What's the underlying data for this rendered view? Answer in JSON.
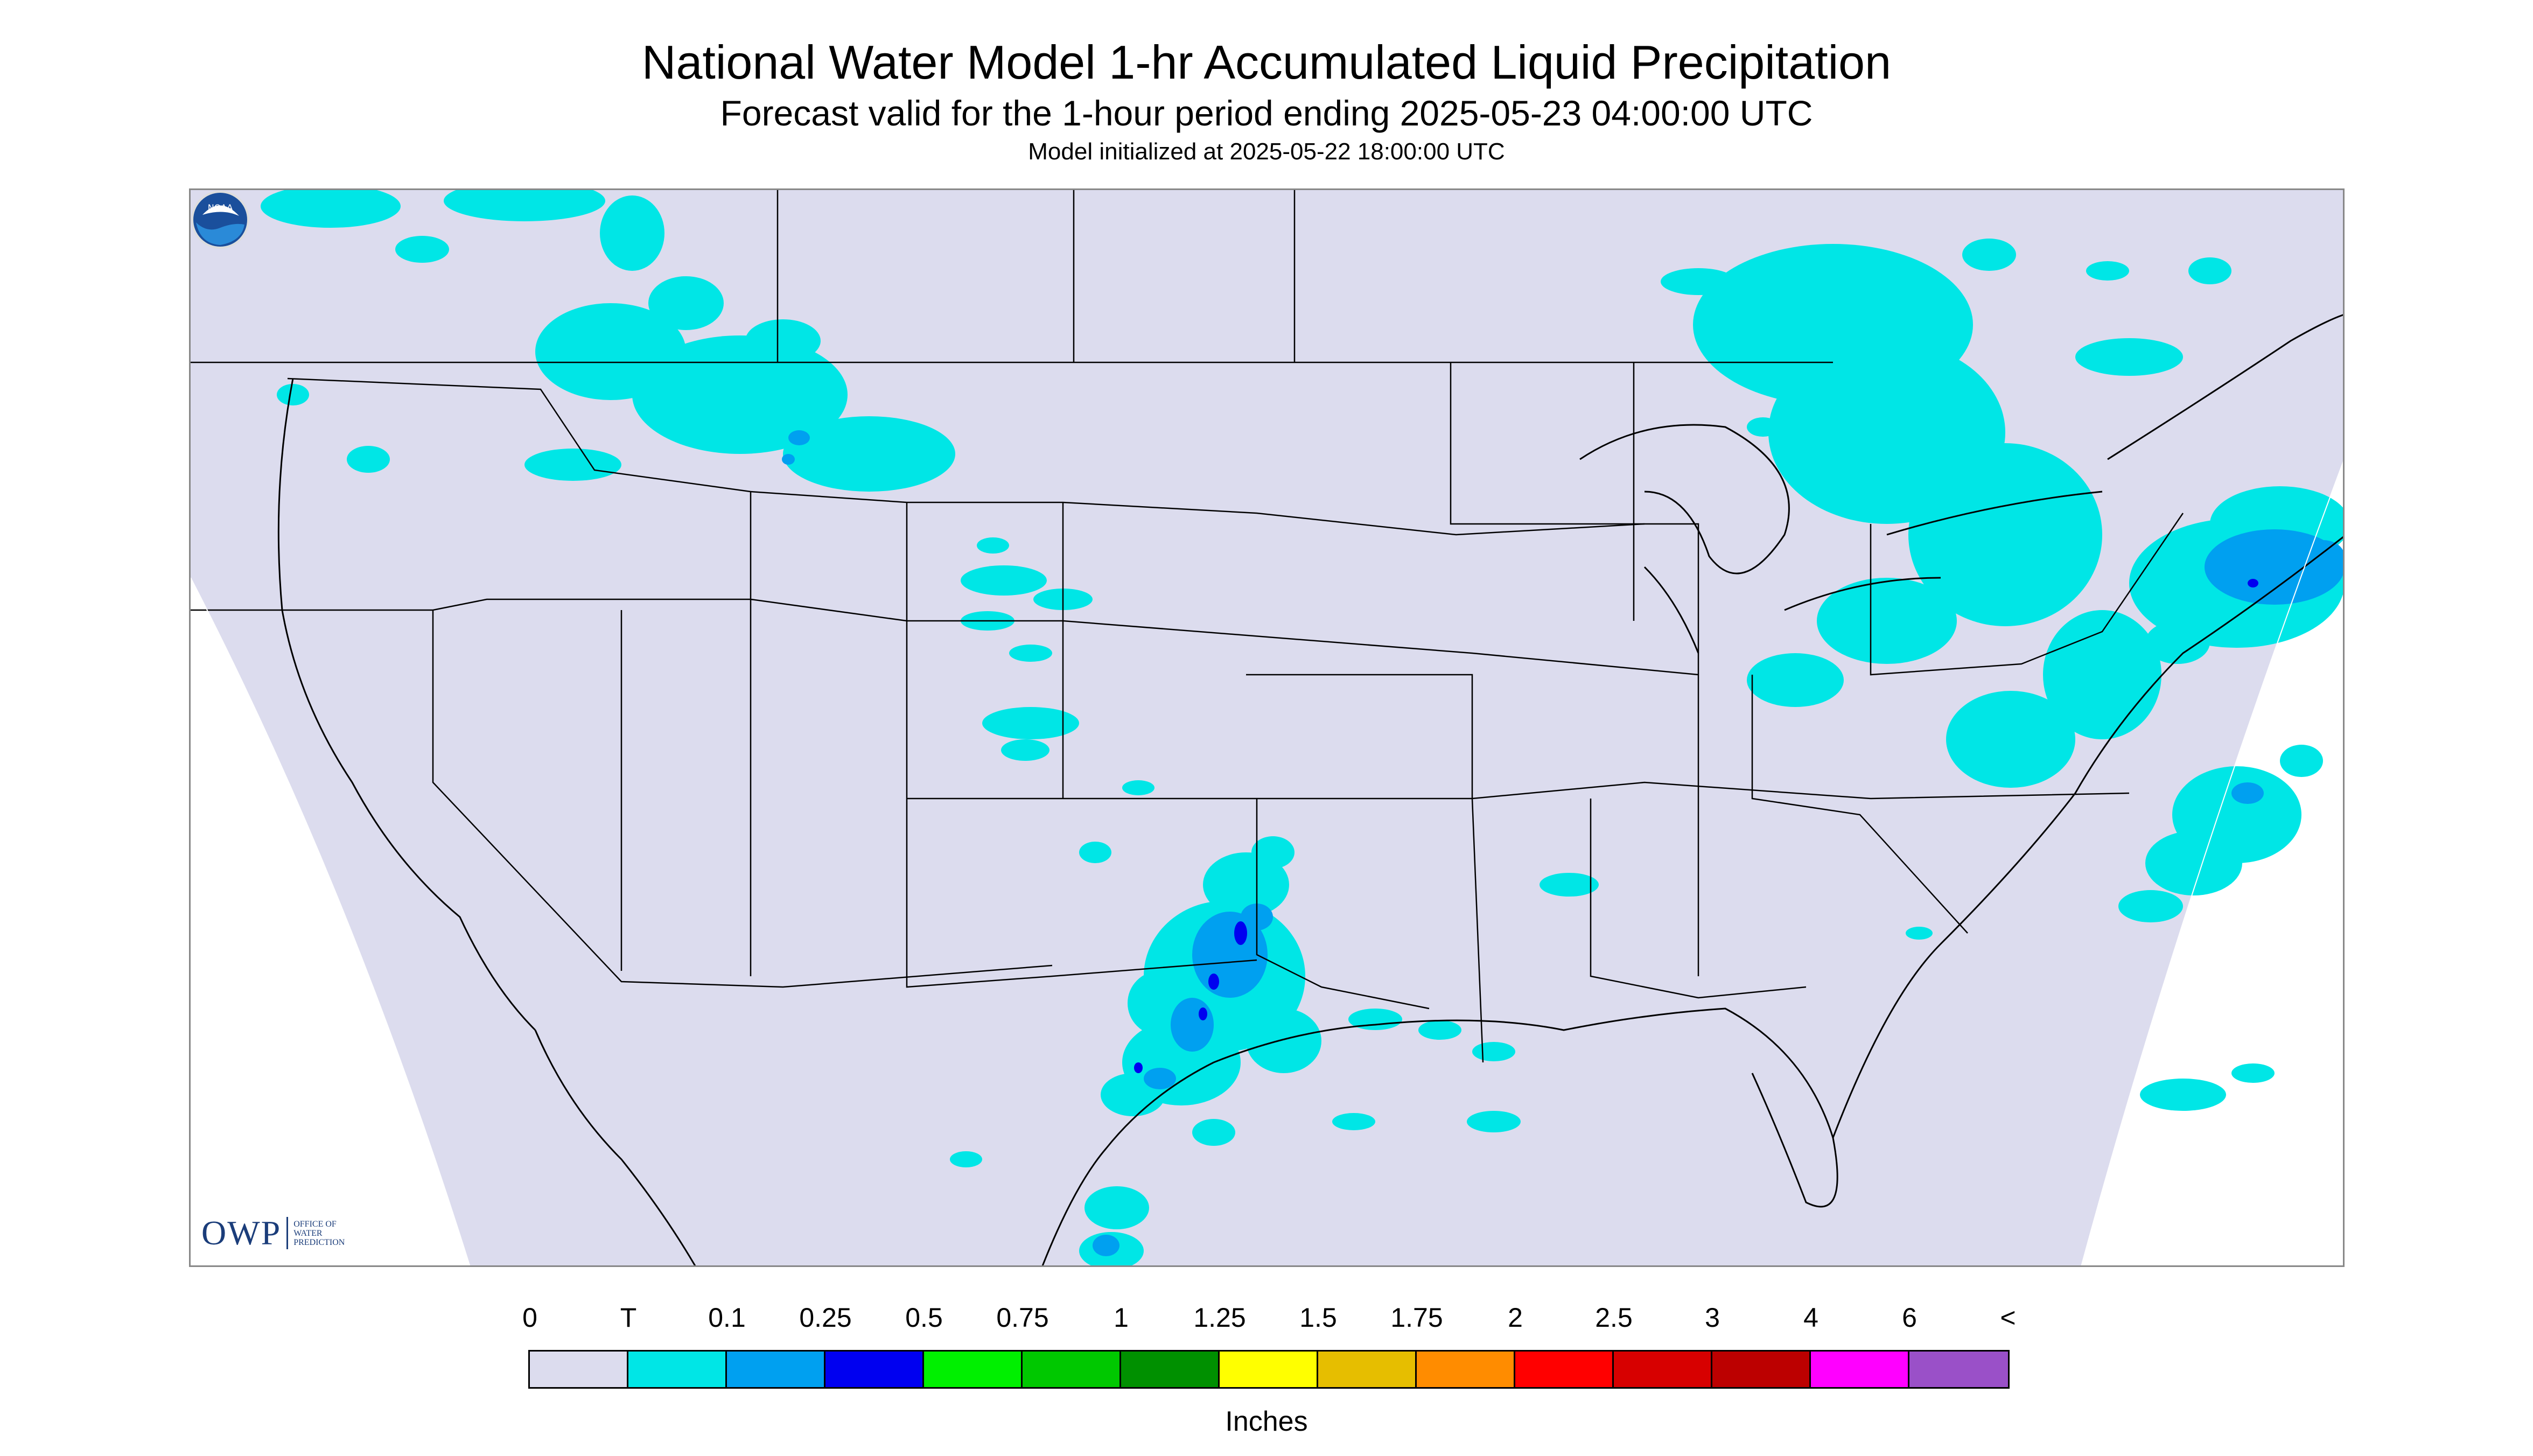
{
  "title": "National Water Model 1-hr Accumulated Liquid Precipitation",
  "subtitle": "Forecast valid for the 1-hour period ending 2025-05-23 04:00:00 UTC",
  "init_text": "Model initialized at 2025-05-22 18:00:00 UTC",
  "logos": {
    "owp_mark": "OWP",
    "owp_name_lines": [
      "OFFICE OF",
      "WATER",
      "PREDICTION"
    ],
    "noaa_icon": "noaa-logo-icon"
  },
  "map": {
    "background_color": "#dcdcee",
    "outside_color": "#ffffff",
    "precip_regions": [
      {
        "name": "pacific-northwest-montana",
        "level": "T"
      },
      {
        "name": "central-plains-colorado",
        "level": "T"
      },
      {
        "name": "texas-oklahoma",
        "level": "0.1-0.5"
      },
      {
        "name": "great-lakes-northeast",
        "level": "T-0.25"
      },
      {
        "name": "atlantic-offshore",
        "level": "T-0.1"
      },
      {
        "name": "gulf-coast",
        "level": "T"
      }
    ]
  },
  "legend": {
    "labels": [
      "0",
      "T",
      "0.1",
      "0.25",
      "0.5",
      "0.75",
      "1",
      "1.25",
      "1.5",
      "1.75",
      "2",
      "2.5",
      "3",
      "4",
      "6",
      "<"
    ],
    "colors": [
      "#dcdcee",
      "#00e6e6",
      "#00a0f0",
      "#0000f0",
      "#00f000",
      "#00c800",
      "#009000",
      "#ffff00",
      "#e6be00",
      "#ff8c00",
      "#ff0000",
      "#d70000",
      "#bc0000",
      "#ff00ff",
      "#9a50c8"
    ],
    "units": "Inches"
  }
}
